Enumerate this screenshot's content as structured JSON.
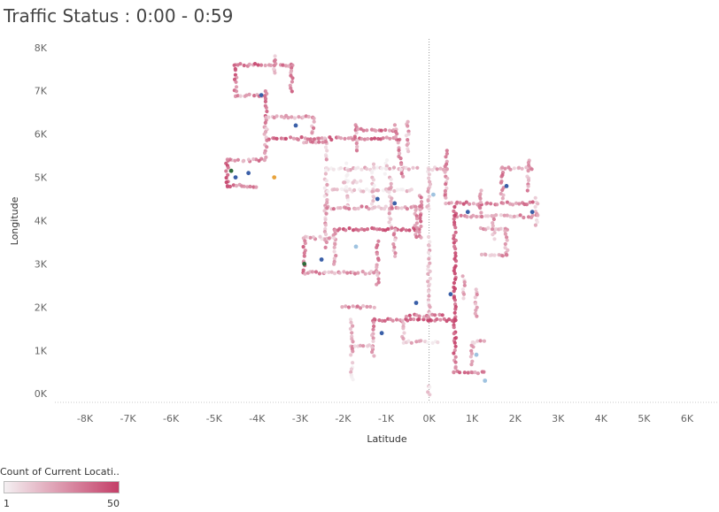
{
  "title": "Traffic Status : 0:00 - 0:59",
  "colors": {
    "low": "#f4f0f2",
    "high": "#c43f68",
    "accent_blue": "#3a5fa8",
    "accent_light_blue": "#9fc3e0",
    "accent_green": "#2e6b3a",
    "accent_orange": "#e8a33c",
    "gridline": "#c8c8c8",
    "zero_line": "#9a9a9a"
  },
  "chart_data": {
    "type": "scatter",
    "xlabel": "Latitude",
    "ylabel": "Longitude",
    "xlim": [
      -8700,
      6700
    ],
    "ylim": [
      -200,
      8200
    ],
    "x_ticks": [
      {
        "value": -8000,
        "label": "-8K"
      },
      {
        "value": -7000,
        "label": "-7K"
      },
      {
        "value": -6000,
        "label": "-6K"
      },
      {
        "value": -5000,
        "label": "-5K"
      },
      {
        "value": -4000,
        "label": "-4K"
      },
      {
        "value": -3000,
        "label": "-3K"
      },
      {
        "value": -2000,
        "label": "-2K"
      },
      {
        "value": -1000,
        "label": "-1K"
      },
      {
        "value": 0,
        "label": "0K"
      },
      {
        "value": 1000,
        "label": "1K"
      },
      {
        "value": 2000,
        "label": "2K"
      },
      {
        "value": 3000,
        "label": "3K"
      },
      {
        "value": 4000,
        "label": "4K"
      },
      {
        "value": 5000,
        "label": "5K"
      },
      {
        "value": 6000,
        "label": "6K"
      }
    ],
    "y_ticks": [
      {
        "value": 0,
        "label": "0K"
      },
      {
        "value": 1000,
        "label": "1K"
      },
      {
        "value": 2000,
        "label": "2K"
      },
      {
        "value": 3000,
        "label": "3K"
      },
      {
        "value": 4000,
        "label": "4K"
      },
      {
        "value": 5000,
        "label": "5K"
      },
      {
        "value": 6000,
        "label": "6K"
      },
      {
        "value": 7000,
        "label": "7K"
      },
      {
        "value": 8000,
        "label": "8K"
      }
    ],
    "grid": false,
    "zero_lines": true,
    "color_legend": {
      "title": "Count of Current Locati..",
      "min": 1,
      "max": 50,
      "min_label": "1",
      "max_label": "50",
      "placement": "bottom-left"
    },
    "route_segments": [
      {
        "from": [
          -4500,
          7600
        ],
        "to": [
          -3200,
          7600
        ],
        "count": 35
      },
      {
        "from": [
          -3200,
          7600
        ],
        "to": [
          -3200,
          7000
        ],
        "count": 30
      },
      {
        "from": [
          -4500,
          7600
        ],
        "to": [
          -4500,
          6900
        ],
        "count": 40
      },
      {
        "from": [
          -4500,
          6900
        ],
        "to": [
          -3800,
          6900
        ],
        "count": 28
      },
      {
        "from": [
          -3800,
          7000
        ],
        "to": [
          -3800,
          6100
        ],
        "count": 32
      },
      {
        "from": [
          -3800,
          6400
        ],
        "to": [
          -2700,
          6400
        ],
        "count": 26
      },
      {
        "from": [
          -2700,
          6400
        ],
        "to": [
          -2700,
          6000
        ],
        "count": 24
      },
      {
        "from": [
          -3800,
          5900
        ],
        "to": [
          -700,
          5900
        ],
        "count": 38
      },
      {
        "from": [
          -3800,
          6200
        ],
        "to": [
          -3800,
          5400
        ],
        "count": 22
      },
      {
        "from": [
          -3800,
          5400
        ],
        "to": [
          -4700,
          5400
        ],
        "count": 30
      },
      {
        "from": [
          -4700,
          5400
        ],
        "to": [
          -4700,
          4800
        ],
        "count": 44
      },
      {
        "from": [
          -4700,
          4800
        ],
        "to": [
          -4000,
          4800
        ],
        "count": 36
      },
      {
        "from": [
          -2400,
          5900
        ],
        "to": [
          -2400,
          5400
        ],
        "count": 18
      },
      {
        "from": [
          -1700,
          6200
        ],
        "to": [
          -1700,
          5600
        ],
        "count": 27
      },
      {
        "from": [
          -1700,
          6100
        ],
        "to": [
          -800,
          6100
        ],
        "count": 33
      },
      {
        "from": [
          -800,
          6200
        ],
        "to": [
          -600,
          5000
        ],
        "count": 29
      },
      {
        "from": [
          -500,
          6300
        ],
        "to": [
          -500,
          5600
        ],
        "count": 22
      },
      {
        "from": [
          -2400,
          5200
        ],
        "to": [
          -300,
          5200
        ],
        "count": 12
      },
      {
        "from": [
          -2400,
          5200
        ],
        "to": [
          -2400,
          4200
        ],
        "count": 14
      },
      {
        "from": [
          -2400,
          4700
        ],
        "to": [
          -400,
          4700
        ],
        "count": 9
      },
      {
        "from": [
          -1900,
          5300
        ],
        "to": [
          -1900,
          4300
        ],
        "count": 8
      },
      {
        "from": [
          -1300,
          5300
        ],
        "to": [
          -1300,
          4300
        ],
        "count": 10
      },
      {
        "from": [
          -900,
          5000
        ],
        "to": [
          -900,
          3800
        ],
        "count": 18
      },
      {
        "from": [
          -2400,
          4300
        ],
        "to": [
          0,
          4300
        ],
        "count": 25
      },
      {
        "from": [
          -2400,
          4300
        ],
        "to": [
          -2400,
          3400
        ],
        "count": 20
      },
      {
        "from": [
          -2200,
          3800
        ],
        "to": [
          -300,
          3800
        ],
        "count": 46
      },
      {
        "from": [
          -2200,
          3800
        ],
        "to": [
          -2200,
          3000
        ],
        "count": 24
      },
      {
        "from": [
          -2200,
          3600
        ],
        "to": [
          -2900,
          3600
        ],
        "count": 18
      },
      {
        "from": [
          -2900,
          3600
        ],
        "to": [
          -2900,
          2800
        ],
        "count": 32
      },
      {
        "from": [
          -2900,
          2800
        ],
        "to": [
          -1200,
          2800
        ],
        "count": 26
      },
      {
        "from": [
          -1200,
          3500
        ],
        "to": [
          -1200,
          2500
        ],
        "count": 28
      },
      {
        "from": [
          -800,
          3800
        ],
        "to": [
          -800,
          3200
        ],
        "count": 22
      },
      {
        "from": [
          -200,
          4600
        ],
        "to": [
          -200,
          3600
        ],
        "count": 30
      },
      {
        "from": [
          0,
          5200
        ],
        "to": [
          0,
          4300
        ],
        "count": 16
      },
      {
        "from": [
          0,
          5200
        ],
        "to": [
          400,
          5200
        ],
        "count": 20
      },
      {
        "from": [
          400,
          5600
        ],
        "to": [
          400,
          4500
        ],
        "count": 26
      },
      {
        "from": [
          400,
          4400
        ],
        "to": [
          2500,
          4400
        ],
        "count": 34
      },
      {
        "from": [
          600,
          4100
        ],
        "to": [
          2500,
          4100
        ],
        "count": 24
      },
      {
        "from": [
          2500,
          4500
        ],
        "to": [
          2500,
          3900
        ],
        "count": 18
      },
      {
        "from": [
          2300,
          5400
        ],
        "to": [
          2300,
          4700
        ],
        "count": 26
      },
      {
        "from": [
          1700,
          5200
        ],
        "to": [
          2400,
          5200
        ],
        "count": 22
      },
      {
        "from": [
          1700,
          5200
        ],
        "to": [
          1700,
          4500
        ],
        "count": 30
      },
      {
        "from": [
          1200,
          4700
        ],
        "to": [
          1200,
          4200
        ],
        "count": 24
      },
      {
        "from": [
          1500,
          4100
        ],
        "to": [
          1500,
          3600
        ],
        "count": 20
      },
      {
        "from": [
          1200,
          3800
        ],
        "to": [
          1800,
          3800
        ],
        "count": 18
      },
      {
        "from": [
          1800,
          3800
        ],
        "to": [
          1800,
          3200
        ],
        "count": 26
      },
      {
        "from": [
          1200,
          3200
        ],
        "to": [
          1800,
          3200
        ],
        "count": 22
      },
      {
        "from": [
          600,
          4300
        ],
        "to": [
          600,
          1300
        ],
        "count": 48
      },
      {
        "from": [
          600,
          1300
        ],
        "to": [
          600,
          500
        ],
        "count": 40
      },
      {
        "from": [
          600,
          500
        ],
        "to": [
          1300,
          500
        ],
        "count": 30
      },
      {
        "from": [
          1000,
          1200
        ],
        "to": [
          1000,
          700
        ],
        "count": 22
      },
      {
        "from": [
          1000,
          1200
        ],
        "to": [
          1300,
          1200
        ],
        "count": 20
      },
      {
        "from": [
          -300,
          4300
        ],
        "to": [
          -300,
          3600
        ],
        "count": 28
      },
      {
        "from": [
          0,
          3600
        ],
        "to": [
          0,
          1700
        ],
        "count": 16
      },
      {
        "from": [
          0,
          1700
        ],
        "to": [
          600,
          1700
        ],
        "count": 42
      },
      {
        "from": [
          -1300,
          1700
        ],
        "to": [
          0,
          1700
        ],
        "count": 36
      },
      {
        "from": [
          -1300,
          1700
        ],
        "to": [
          -1300,
          900
        ],
        "count": 26
      },
      {
        "from": [
          -1800,
          1700
        ],
        "to": [
          -1800,
          900
        ],
        "count": 20
      },
      {
        "from": [
          -1800,
          1100
        ],
        "to": [
          -1300,
          1100
        ],
        "count": 22
      },
      {
        "from": [
          -1800,
          700
        ],
        "to": [
          -1800,
          300
        ],
        "count": 8
      },
      {
        "from": [
          -600,
          1700
        ],
        "to": [
          -600,
          1200
        ],
        "count": 18
      },
      {
        "from": [
          -600,
          1200
        ],
        "to": [
          200,
          1200
        ],
        "count": 14
      },
      {
        "from": [
          -2000,
          2000
        ],
        "to": [
          -1300,
          2000
        ],
        "count": 30
      },
      {
        "from": [
          -500,
          1800
        ],
        "to": [
          300,
          1800
        ],
        "count": 38
      },
      {
        "from": [
          800,
          2700
        ],
        "to": [
          800,
          2200
        ],
        "count": 18
      },
      {
        "from": [
          1100,
          2400
        ],
        "to": [
          1100,
          1800
        ],
        "count": 22
      },
      {
        "from": [
          0,
          200
        ],
        "to": [
          0,
          0
        ],
        "count": 6
      },
      {
        "from": [
          -2900,
          5800
        ],
        "to": [
          -2400,
          5800
        ],
        "count": 30
      },
      {
        "from": [
          -3600,
          7400
        ],
        "to": [
          -3600,
          7800
        ],
        "count": 20
      },
      {
        "from": [
          -1000,
          5400
        ],
        "to": [
          -1000,
          5100
        ],
        "count": 10
      },
      {
        "from": [
          -2000,
          4900
        ],
        "to": [
          -1600,
          4900
        ],
        "count": 12
      }
    ],
    "highlight_points": [
      {
        "x": -4500,
        "y": 5000,
        "color": "#3a5fa8"
      },
      {
        "x": -4200,
        "y": 5100,
        "color": "#3a5fa8"
      },
      {
        "x": -4600,
        "y": 5150,
        "color": "#2e6b3a"
      },
      {
        "x": -3600,
        "y": 5000,
        "color": "#e8a33c"
      },
      {
        "x": -3900,
        "y": 6900,
        "color": "#3a5fa8"
      },
      {
        "x": -3100,
        "y": 6200,
        "color": "#3a5fa8"
      },
      {
        "x": -2900,
        "y": 3000,
        "color": "#2e6b3a"
      },
      {
        "x": -2500,
        "y": 3100,
        "color": "#3a5fa8"
      },
      {
        "x": -1200,
        "y": 4500,
        "color": "#3a5fa8"
      },
      {
        "x": -800,
        "y": 4400,
        "color": "#3a5fa8"
      },
      {
        "x": 100,
        "y": 4600,
        "color": "#9fc3e0"
      },
      {
        "x": 900,
        "y": 4200,
        "color": "#3a5fa8"
      },
      {
        "x": 2400,
        "y": 4200,
        "color": "#3a5fa8"
      },
      {
        "x": 1800,
        "y": 4800,
        "color": "#3a5fa8"
      },
      {
        "x": -1100,
        "y": 1400,
        "color": "#3a5fa8"
      },
      {
        "x": 1100,
        "y": 900,
        "color": "#9fc3e0"
      },
      {
        "x": 500,
        "y": 2300,
        "color": "#3a5fa8"
      },
      {
        "x": -1700,
        "y": 3400,
        "color": "#9fc3e0"
      },
      {
        "x": 1300,
        "y": 300,
        "color": "#9fc3e0"
      },
      {
        "x": -300,
        "y": 2100,
        "color": "#3a5fa8"
      }
    ]
  }
}
